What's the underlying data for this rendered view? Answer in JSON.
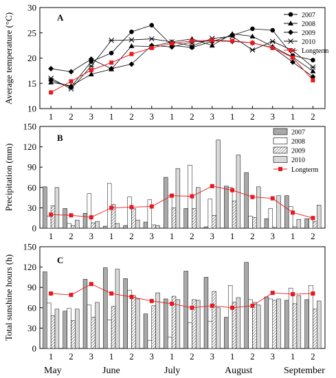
{
  "months": [
    "May",
    "June",
    "July",
    "August",
    "September"
  ],
  "decade_ticks": [
    "1",
    "2",
    "3",
    "1",
    "2",
    "3",
    "1",
    "2",
    "3",
    "1",
    "2",
    "3",
    "1",
    "2"
  ],
  "chart_data": [
    {
      "type": "line",
      "panel_label": "A",
      "ylabel": "Average temperature (°C)",
      "ylim": [
        10,
        30
      ],
      "yticks": [
        10,
        15,
        20,
        25,
        30
      ],
      "x": [
        1,
        2,
        3,
        4,
        5,
        6,
        7,
        8,
        9,
        10,
        11,
        12,
        13,
        14
      ],
      "legend_position": "top-right",
      "series": [
        {
          "name": "2007",
          "marker": "circle",
          "color": "#000000",
          "values": [
            15.6,
            14.3,
            19.3,
            21.0,
            25.2,
            26.5,
            22.5,
            22.1,
            23.3,
            24.5,
            25.8,
            25.5,
            20.5,
            19.6
          ]
        },
        {
          "name": "2008",
          "marker": "triangle",
          "color": "#000000",
          "values": [
            15.2,
            14.5,
            16.8,
            17.8,
            22.4,
            22.3,
            23.2,
            23.8,
            22.5,
            24.8,
            24.3,
            22.3,
            20.2,
            17.4
          ]
        },
        {
          "name": "2009",
          "marker": "diamond",
          "color": "#000000",
          "values": [
            17.9,
            17.3,
            19.8,
            17.9,
            18.8,
            22.5,
            22.2,
            23.2,
            23.4,
            23.3,
            23.0,
            22.1,
            19.2,
            16.3
          ]
        },
        {
          "name": "2010",
          "marker": "x",
          "color": "#000000",
          "values": [
            16.0,
            13.9,
            18.4,
            23.5,
            23.6,
            23.8,
            23.2,
            22.4,
            23.9,
            24.3,
            21.6,
            23.3,
            21.5,
            18.2
          ]
        },
        {
          "name": "Longterm",
          "marker": "square",
          "color": "#e8181e",
          "values": [
            13.2,
            15.4,
            17.6,
            19.1,
            20.8,
            22.0,
            22.9,
            23.4,
            23.5,
            23.4,
            23.0,
            22.0,
            20.1,
            15.6
          ]
        }
      ]
    },
    {
      "type": "bar",
      "panel_label": "B",
      "ylabel": "Precipitation (mm)",
      "ylim": [
        0,
        150
      ],
      "yticks": [
        0,
        30,
        60,
        90,
        120,
        150
      ],
      "x": [
        1,
        2,
        3,
        4,
        5,
        6,
        7,
        8,
        9,
        10,
        11,
        12,
        13,
        14
      ],
      "legend_position": "top-right",
      "series": [
        {
          "name": "2007",
          "fill": "gray-dark",
          "values": [
            61,
            29,
            22,
            3,
            4,
            9,
            75,
            29,
            2,
            62,
            82,
            14,
            48,
            14
          ]
        },
        {
          "name": "2008",
          "fill": "white",
          "values": [
            18,
            7,
            51,
            66,
            46,
            42,
            48,
            93,
            43,
            60,
            18,
            29,
            32,
            14
          ]
        },
        {
          "name": "2009",
          "fill": "hatch",
          "values": [
            33,
            4,
            8,
            35,
            29,
            5,
            30,
            29,
            19,
            40,
            16,
            1,
            2,
            10
          ]
        },
        {
          "name": "2010",
          "fill": "gray-light",
          "values": [
            60,
            12,
            10,
            7,
            12,
            4,
            88,
            60,
            130,
            108,
            61,
            48,
            13,
            34
          ]
        },
        {
          "name": "Longterm",
          "marker": "square",
          "color": "#e8181e",
          "line": true,
          "values": [
            20,
            19,
            16,
            30,
            31,
            32,
            48,
            47,
            62,
            56,
            46,
            44,
            23,
            15
          ]
        }
      ]
    },
    {
      "type": "bar",
      "panel_label": "C",
      "ylabel": "Total sunshine hours (h)",
      "ylim": [
        0,
        150
      ],
      "yticks": [
        0,
        30,
        60,
        90,
        120,
        150
      ],
      "x": [
        1,
        2,
        3,
        4,
        5,
        6,
        7,
        8,
        9,
        10,
        11,
        12,
        13,
        14
      ],
      "series": [
        {
          "name": "2007",
          "fill": "gray-dark",
          "values": [
            113,
            55,
            102,
            119,
            103,
            51,
            73,
            114,
            105,
            46,
            127,
            76,
            71,
            72
          ]
        },
        {
          "name": "2008",
          "fill": "white",
          "values": [
            67,
            59,
            64,
            42,
            86,
            12,
            17,
            38,
            40,
            93,
            72,
            73,
            89,
            93
          ]
        },
        {
          "name": "2009",
          "fill": "hatch",
          "values": [
            48,
            41,
            46,
            62,
            78,
            63,
            77,
            72,
            84,
            68,
            68,
            71,
            66,
            58
          ]
        },
        {
          "name": "2010",
          "fill": "gray-light",
          "values": [
            58,
            58,
            68,
            117,
            73,
            82,
            72,
            71,
            60,
            75,
            64,
            73,
            78,
            70
          ]
        },
        {
          "name": "Longterm",
          "marker": "square",
          "color": "#e8181e",
          "line": true,
          "values": [
            81,
            79,
            95,
            81,
            76,
            70,
            66,
            60,
            63,
            60,
            63,
            82,
            80,
            81
          ]
        }
      ]
    }
  ]
}
